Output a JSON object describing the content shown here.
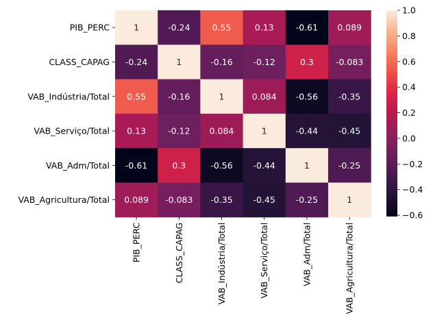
{
  "chart_data": {
    "type": "heatmap",
    "title": "",
    "xlabel": "",
    "ylabel": "",
    "rows": [
      "PIB_PERC",
      "CLASS_CAPAG",
      "VAB_Indústria/Total",
      "VAB_Serviço/Total",
      "VAB_Adm/Total",
      "VAB_Agricultura/Total"
    ],
    "columns": [
      "PIB_PERC",
      "CLASS_CAPAG",
      "VAB_Indústria/Total",
      "VAB_Serviço/Total",
      "VAB_Adm/Total",
      "VAB_Agricultura/Total"
    ],
    "values": [
      [
        1,
        -0.24,
        0.55,
        0.13,
        -0.61,
        0.089
      ],
      [
        -0.24,
        1,
        -0.16,
        -0.12,
        0.3,
        -0.083
      ],
      [
        0.55,
        -0.16,
        1,
        0.084,
        -0.56,
        -0.35
      ],
      [
        0.13,
        -0.12,
        0.084,
        1,
        -0.44,
        -0.45
      ],
      [
        -0.61,
        0.3,
        -0.56,
        -0.44,
        1,
        -0.25
      ],
      [
        0.089,
        -0.083,
        -0.35,
        -0.45,
        -0.25,
        1
      ]
    ],
    "cell_labels": [
      [
        "1",
        "-0.24",
        "0.55",
        "0.13",
        "-0.61",
        "0.089"
      ],
      [
        "-0.24",
        "1",
        "-0.16",
        "-0.12",
        "0.3",
        "-0.083"
      ],
      [
        "0.55",
        "-0.16",
        "1",
        "0.084",
        "-0.56",
        "-0.35"
      ],
      [
        "0.13",
        "-0.12",
        "0.084",
        "1",
        "-0.44",
        "-0.45"
      ],
      [
        "-0.61",
        "0.3",
        "-0.56",
        "-0.44",
        "1",
        "-0.25"
      ],
      [
        "0.089",
        "-0.083",
        "-0.35",
        "-0.45",
        "-0.25",
        "1"
      ]
    ],
    "colorbar": {
      "min": -0.61,
      "max": 1,
      "ticks": [
        1.0,
        0.8,
        0.6,
        0.4,
        0.2,
        0.0,
        -0.2,
        -0.4,
        -0.6
      ],
      "tick_labels": [
        "1.0",
        "0.8",
        "0.6",
        "0.4",
        "0.2",
        "0.0",
        "−0.2",
        "−0.4",
        "−0.6"
      ],
      "colormap": "rocket"
    },
    "grid": false,
    "legend": "colorbar-right"
  }
}
